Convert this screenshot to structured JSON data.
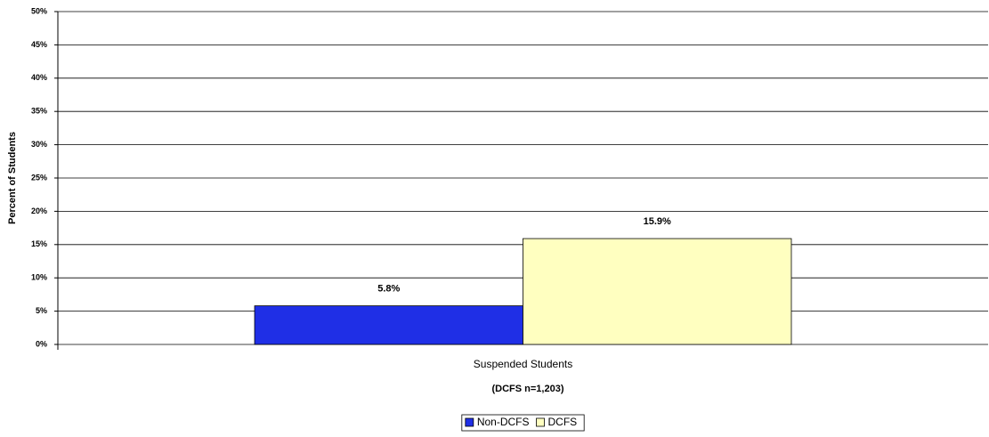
{
  "chart_data": {
    "type": "bar",
    "categories": [
      "Suspended Students"
    ],
    "x_label": "(DCFS n=1,203)",
    "y_label": "Percent of Students",
    "series": [
      {
        "name": "Non-DCFS",
        "color": "#1f2fe6",
        "values": [
          5.8
        ],
        "value_labels": [
          "5.8%"
        ]
      },
      {
        "name": "DCFS",
        "color": "#ffffc0",
        "values": [
          15.9
        ],
        "value_labels": [
          "15.9%"
        ]
      }
    ],
    "ylim": [
      0,
      50
    ],
    "yticks": [
      {
        "value": 0,
        "label": "0%"
      },
      {
        "value": 5,
        "label": "5%"
      },
      {
        "value": 10,
        "label": "10%"
      },
      {
        "value": 15,
        "label": "15%"
      },
      {
        "value": 20,
        "label": "20%"
      },
      {
        "value": 25,
        "label": "25%"
      },
      {
        "value": 30,
        "label": "30%"
      },
      {
        "value": 35,
        "label": "35%"
      },
      {
        "value": 40,
        "label": "40%"
      },
      {
        "value": 45,
        "label": "45%"
      },
      {
        "value": 50,
        "label": "50%"
      }
    ],
    "grid": true,
    "legend": "bottom"
  }
}
